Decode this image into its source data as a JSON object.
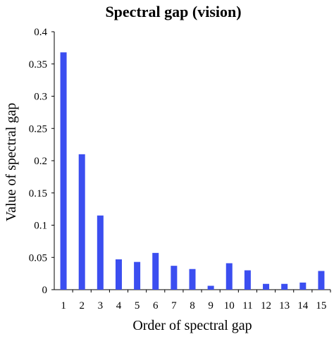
{
  "chart_data": {
    "type": "bar",
    "title": "Spectral gap (vision)",
    "xlabel": "Order of spectral gap",
    "ylabel": "Value of spectral gap",
    "categories": [
      "1",
      "2",
      "3",
      "4",
      "5",
      "6",
      "7",
      "8",
      "9",
      "10",
      "11",
      "12",
      "13",
      "14",
      "15"
    ],
    "values": [
      0.368,
      0.21,
      0.115,
      0.047,
      0.043,
      0.057,
      0.037,
      0.032,
      0.006,
      0.041,
      0.03,
      0.009,
      0.009,
      0.011,
      0.029
    ],
    "ylim": [
      0,
      0.4
    ],
    "yticks": [
      "0",
      "0.05",
      "0.1",
      "0.15",
      "0.2",
      "0.25",
      "0.3",
      "0.35",
      "0.4"
    ],
    "grid": false,
    "colors": {
      "bar": "#3B4EF0",
      "axis": "#000000",
      "text": "#000000"
    }
  }
}
